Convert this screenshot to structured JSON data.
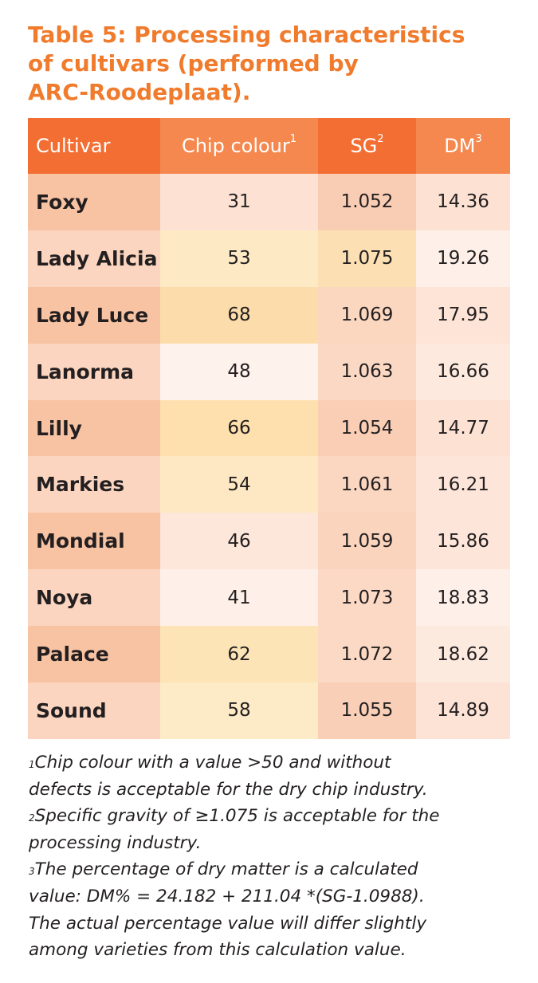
{
  "title_lines": [
    "Table 5: Processing characteristics",
    "of cultivars (performed by",
    "ARC-Roodeplaat)."
  ],
  "table": {
    "headers": [
      {
        "text": "Cultivar",
        "sup": ""
      },
      {
        "text": "Chip colour",
        "sup": "1"
      },
      {
        "text": "SG",
        "sup": "2"
      },
      {
        "text": "DM",
        "sup": "3"
      }
    ],
    "header_colors": [
      "#f26e33",
      "#f5884f",
      "#f26e33",
      "#f5884f"
    ],
    "rows": [
      {
        "cells": [
          "Foxy",
          "31",
          "1.052",
          "14.36"
        ],
        "colors": [
          "#f8c3a3",
          "#fde2d3",
          "#f9cdb4",
          "#fde2d3"
        ]
      },
      {
        "cells": [
          "Lady Alicia",
          "53",
          "1.075",
          "19.26"
        ],
        "colors": [
          "#fbd5bf",
          "#fde9c4",
          "#fce0b3",
          "#fef0e8"
        ]
      },
      {
        "cells": [
          "Lady Luce",
          "68",
          "1.069",
          "17.95"
        ],
        "colors": [
          "#f8c3a3",
          "#fcdcaa",
          "#fbd7c0",
          "#fde4d6"
        ]
      },
      {
        "cells": [
          "Lanorma",
          "48",
          "1.063",
          "16.66"
        ],
        "colors": [
          "#fbd5bf",
          "#fef2ed",
          "#fbd8c3",
          "#fde9dd"
        ]
      },
      {
        "cells": [
          "Lilly",
          "66",
          "1.054",
          "14.77"
        ],
        "colors": [
          "#f8c3a3",
          "#fde0ad",
          "#f9ceb5",
          "#fde2d3"
        ]
      },
      {
        "cells": [
          "Markies",
          "54",
          "1.061",
          "16.21"
        ],
        "colors": [
          "#fbd5bf",
          "#fde8c3",
          "#fbd6c0",
          "#fde6d9"
        ]
      },
      {
        "cells": [
          "Mondial",
          "46",
          "1.059",
          "15.86"
        ],
        "colors": [
          "#f8c3a3",
          "#fde6da",
          "#fad4bd",
          "#fde6d9"
        ]
      },
      {
        "cells": [
          "Noya",
          "41",
          "1.073",
          "18.83"
        ],
        "colors": [
          "#fbd5bf",
          "#fef0e8",
          "#fbd9c5",
          "#fef0e8"
        ]
      },
      {
        "cells": [
          "Palace",
          "62",
          "1.072",
          "18.62"
        ],
        "colors": [
          "#f8c3a3",
          "#fde4b6",
          "#fbd9c4",
          "#fdeadf"
        ]
      },
      {
        "cells": [
          "Sound",
          "58",
          "1.055",
          "14.89"
        ],
        "colors": [
          "#fbd5bf",
          "#fdeac6",
          "#f9cfb7",
          "#fde3d5"
        ]
      }
    ]
  },
  "footnotes": [
    {
      "sup": "1",
      "lines": [
        "Chip colour with a value >50 and without",
        "defects is acceptable for the dry chip industry."
      ]
    },
    {
      "sup": "2",
      "lines": [
        "Specific gravity of ≥1.075 is acceptable for the",
        "processing industry."
      ]
    },
    {
      "sup": "3",
      "lines": [
        "The percentage of dry matter is a calculated",
        "value: DM% = 24.182 + 211.04 *(SG-1.0988).",
        "The actual percentage value will differ slightly",
        "among varieties from this calculation value."
      ]
    }
  ],
  "colors": {
    "title": "#f07b2c",
    "text": "#231f20"
  }
}
